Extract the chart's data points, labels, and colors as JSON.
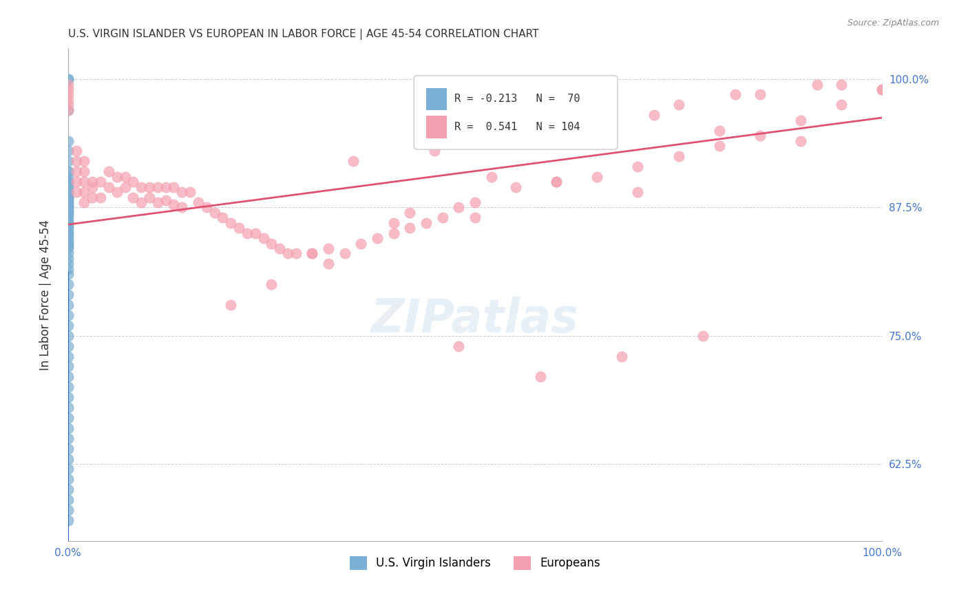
{
  "title": "U.S. VIRGIN ISLANDER VS EUROPEAN IN LABOR FORCE | AGE 45-54 CORRELATION CHART",
  "source": "Source: ZipAtlas.com",
  "xlabel": "",
  "ylabel": "In Labor Force | Age 45-54",
  "xlim": [
    0.0,
    1.0
  ],
  "ylim": [
    0.55,
    1.03
  ],
  "xticks": [
    0.0,
    0.1,
    0.2,
    0.3,
    0.4,
    0.5,
    0.6,
    0.7,
    0.8,
    0.9,
    1.0
  ],
  "yticks": [
    0.625,
    0.75,
    0.875,
    1.0
  ],
  "ytick_labels": [
    "62.5%",
    "75.0%",
    "87.5%",
    "100.0%"
  ],
  "xtick_labels": [
    "0.0%",
    "",
    "",
    "",
    "",
    "",
    "",
    "",
    "",
    "",
    "100.0%"
  ],
  "r_blue": -0.213,
  "n_blue": 70,
  "r_pink": 0.541,
  "n_pink": 104,
  "blue_color": "#7bafd4",
  "pink_color": "#f4a0b0",
  "blue_line_color": "#3060c0",
  "pink_line_color": "#e05070",
  "legend_r_color": "#3060c0",
  "legend_n_color": "#3060c0",
  "watermark": "ZIPatlas",
  "watermark_color": "#d0e0f0",
  "blue_points_x": [
    0.0,
    0.0,
    0.0,
    0.0,
    0.0,
    0.0,
    0.0,
    0.0,
    0.0,
    0.0,
    0.0,
    0.0,
    0.0,
    0.0,
    0.0,
    0.0,
    0.0,
    0.0,
    0.0,
    0.0,
    0.0,
    0.0,
    0.0,
    0.0,
    0.0,
    0.0,
    0.0,
    0.0,
    0.0,
    0.0,
    0.0,
    0.0,
    0.0,
    0.0,
    0.0,
    0.0,
    0.0,
    0.0,
    0.0,
    0.0,
    0.0,
    0.0,
    0.0,
    0.0,
    0.0,
    0.0,
    0.0,
    0.0,
    0.0,
    0.0,
    0.0,
    0.0,
    0.0,
    0.0,
    0.0,
    0.0,
    0.0,
    0.0,
    0.0,
    0.0,
    0.0,
    0.0,
    0.0,
    0.0,
    0.0,
    0.0,
    0.0,
    0.0,
    0.0,
    0.0
  ],
  "blue_points_y": [
    1.0,
    1.0,
    0.97,
    0.94,
    0.93,
    0.92,
    0.91,
    0.91,
    0.905,
    0.9,
    0.9,
    0.9,
    0.895,
    0.895,
    0.89,
    0.89,
    0.885,
    0.885,
    0.885,
    0.882,
    0.88,
    0.878,
    0.875,
    0.875,
    0.873,
    0.872,
    0.87,
    0.868,
    0.865,
    0.862,
    0.86,
    0.857,
    0.855,
    0.852,
    0.85,
    0.847,
    0.845,
    0.842,
    0.84,
    0.837,
    0.835,
    0.83,
    0.825,
    0.82,
    0.815,
    0.81,
    0.8,
    0.79,
    0.78,
    0.77,
    0.76,
    0.75,
    0.74,
    0.73,
    0.72,
    0.71,
    0.7,
    0.69,
    0.68,
    0.67,
    0.66,
    0.65,
    0.64,
    0.63,
    0.62,
    0.61,
    0.6,
    0.59,
    0.58,
    0.57
  ],
  "pink_points_x": [
    0.0,
    0.0,
    0.0,
    0.0,
    0.0,
    0.0,
    0.01,
    0.01,
    0.01,
    0.01,
    0.01,
    0.02,
    0.02,
    0.02,
    0.02,
    0.02,
    0.03,
    0.03,
    0.03,
    0.04,
    0.04,
    0.05,
    0.05,
    0.06,
    0.06,
    0.07,
    0.07,
    0.08,
    0.08,
    0.09,
    0.09,
    0.1,
    0.1,
    0.11,
    0.11,
    0.12,
    0.12,
    0.13,
    0.13,
    0.14,
    0.14,
    0.15,
    0.16,
    0.17,
    0.18,
    0.19,
    0.2,
    0.21,
    0.22,
    0.23,
    0.24,
    0.25,
    0.26,
    0.27,
    0.28,
    0.3,
    0.32,
    0.34,
    0.36,
    0.38,
    0.4,
    0.42,
    0.44,
    0.46,
    0.48,
    0.5,
    0.55,
    0.6,
    0.65,
    0.7,
    0.75,
    0.8,
    0.85,
    0.9,
    0.95,
    1.0,
    0.35,
    0.45,
    0.55,
    0.65,
    0.75,
    0.85,
    0.95,
    0.3,
    0.5,
    0.7,
    0.9,
    0.4,
    0.6,
    0.8,
    1.0,
    0.2,
    0.25,
    0.32,
    0.42,
    0.52,
    0.62,
    0.72,
    0.82,
    0.92,
    0.48,
    0.58,
    0.68,
    0.78
  ],
  "pink_points_y": [
    0.995,
    0.99,
    0.985,
    0.98,
    0.975,
    0.97,
    0.93,
    0.92,
    0.91,
    0.9,
    0.89,
    0.92,
    0.91,
    0.9,
    0.89,
    0.88,
    0.9,
    0.895,
    0.885,
    0.9,
    0.885,
    0.91,
    0.895,
    0.905,
    0.89,
    0.905,
    0.895,
    0.9,
    0.885,
    0.895,
    0.88,
    0.895,
    0.885,
    0.895,
    0.88,
    0.895,
    0.882,
    0.895,
    0.878,
    0.89,
    0.875,
    0.89,
    0.88,
    0.875,
    0.87,
    0.865,
    0.86,
    0.855,
    0.85,
    0.85,
    0.845,
    0.84,
    0.835,
    0.83,
    0.83,
    0.83,
    0.835,
    0.83,
    0.84,
    0.845,
    0.85,
    0.855,
    0.86,
    0.865,
    0.875,
    0.88,
    0.895,
    0.9,
    0.905,
    0.915,
    0.925,
    0.935,
    0.945,
    0.96,
    0.975,
    0.99,
    0.92,
    0.93,
    0.95,
    0.965,
    0.975,
    0.985,
    0.995,
    0.83,
    0.865,
    0.89,
    0.94,
    0.86,
    0.9,
    0.95,
    0.99,
    0.78,
    0.8,
    0.82,
    0.87,
    0.905,
    0.94,
    0.965,
    0.985,
    0.995,
    0.74,
    0.71,
    0.73,
    0.75
  ]
}
